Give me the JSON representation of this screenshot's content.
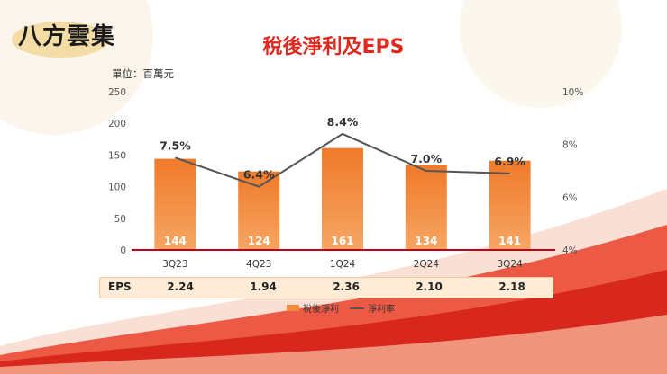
{
  "logo_text": "八方雲集",
  "title": "稅後淨利及EPS",
  "unit_label": "單位：百萬元",
  "eps_label": "EPS",
  "colors": {
    "bar": "#f28c3a",
    "bar_top": "#f07a2a",
    "line": "#555555",
    "axis": "#c0001a",
    "title": "#e0281e"
  },
  "chart_data": {
    "type": "bar",
    "categories": [
      "3Q23",
      "4Q23",
      "1Q24",
      "2Q24",
      "3Q24"
    ],
    "series": [
      {
        "name": "稅後淨利",
        "type": "bar",
        "values": [
          144,
          124,
          161,
          134,
          141
        ],
        "labels": [
          "144",
          "124",
          "161",
          "134",
          "141"
        ]
      },
      {
        "name": "淨利率",
        "type": "line",
        "values": [
          7.5,
          6.4,
          8.4,
          7.0,
          6.9
        ],
        "labels": [
          "7.5%",
          "6.4%",
          "8.4%",
          "7.0%",
          "6.9%"
        ]
      }
    ],
    "eps": [
      "2.24",
      "1.94",
      "2.36",
      "2.10",
      "2.18"
    ],
    "ylim": [
      0,
      250
    ],
    "y_ticks": [
      "0",
      "50",
      "100",
      "150",
      "200",
      "250"
    ],
    "y2lim": [
      4,
      10
    ],
    "y2_ticks": [
      "4%",
      "6%",
      "8%",
      "10%"
    ],
    "legend_position": "bottom",
    "grid": false
  }
}
